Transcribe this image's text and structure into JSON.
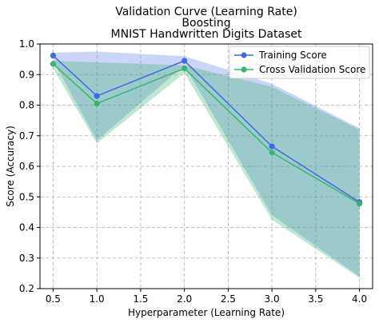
{
  "chart_data": {
    "type": "line",
    "title_lines": [
      "Validation Curve (Learning Rate)",
      "Boosting",
      "MNIST Handwritten Digits Dataset"
    ],
    "xlabel": "Hyperparameter (Learning Rate)",
    "ylabel": "Score (Accuracy)",
    "x": [
      0.5,
      1.0,
      2.0,
      3.0,
      4.0
    ],
    "xlim": [
      0.35,
      4.15
    ],
    "ylim": [
      0.2,
      1.0
    ],
    "xticks": [
      0.5,
      1.0,
      1.5,
      2.0,
      2.5,
      3.0,
      3.5,
      4.0
    ],
    "xtick_labels": [
      "0.5",
      "1.0",
      "1.5",
      "2.0",
      "2.5",
      "3.0",
      "3.5",
      "4.0"
    ],
    "yticks": [
      0.2,
      0.3,
      0.4,
      0.5,
      0.6,
      0.7,
      0.8,
      0.9,
      1.0
    ],
    "ytick_labels": [
      "0.2",
      "0.3",
      "0.4",
      "0.5",
      "0.6",
      "0.7",
      "0.8",
      "0.9",
      "1.0"
    ],
    "grid": true,
    "legend_position": "top-right",
    "series": [
      {
        "name": "Training Score",
        "values": [
          0.962,
          0.83,
          0.945,
          0.665,
          0.483
        ],
        "band_upper": [
          0.972,
          0.975,
          0.96,
          0.87,
          0.725
        ],
        "band_lower": [
          0.945,
          0.685,
          0.93,
          0.44,
          0.24
        ],
        "color": "#4169e1",
        "band_color": "#4169e1"
      },
      {
        "name": "Cross Validation Score",
        "values": [
          0.935,
          0.805,
          0.92,
          0.645,
          0.478
        ],
        "band_upper": [
          0.945,
          0.94,
          0.93,
          0.86,
          0.72
        ],
        "band_lower": [
          0.92,
          0.675,
          0.905,
          0.425,
          0.235
        ],
        "color": "#3cb371",
        "band_color": "#3cb371"
      }
    ]
  }
}
